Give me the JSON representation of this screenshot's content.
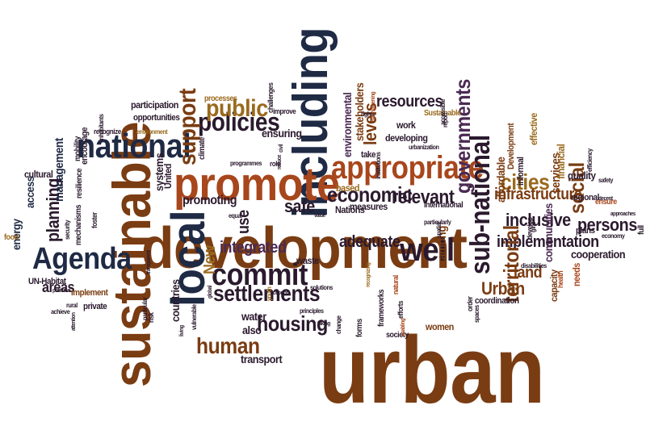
{
  "palette": {
    "dark": "#2b1a2e",
    "navy": "#1f2a44",
    "purple": "#4b2a52",
    "brown": "#7a3c12",
    "rust": "#a8461c",
    "gold": "#9a6a1e",
    "tan": "#b07f2c"
  },
  "words": [
    {
      "t": "urban",
      "c": "brown"
    },
    {
      "t": "development",
      "c": "brown"
    },
    {
      "t": "sustainable",
      "c": "brown"
    },
    {
      "t": "including",
      "c": "navy"
    },
    {
      "t": "local",
      "c": "navy"
    },
    {
      "t": "promote",
      "c": "rust"
    },
    {
      "t": "national",
      "c": "navy"
    },
    {
      "t": "appropriate",
      "c": "rust"
    },
    {
      "t": "Agenda",
      "c": "navy"
    },
    {
      "t": "commit",
      "c": "dark"
    },
    {
      "t": "well",
      "c": "dark"
    },
    {
      "t": "sub-national",
      "c": "dark"
    },
    {
      "t": "policies",
      "c": "dark"
    },
    {
      "t": "public",
      "c": "gold"
    },
    {
      "t": "support",
      "c": "brown"
    },
    {
      "t": "governments",
      "c": "purple"
    },
    {
      "t": "cities",
      "c": "gold"
    },
    {
      "t": "economic",
      "c": "dark"
    },
    {
      "t": "settlements",
      "c": "dark"
    },
    {
      "t": "human",
      "c": "brown"
    },
    {
      "t": "housing",
      "c": "dark"
    },
    {
      "t": "planning",
      "c": "dark"
    },
    {
      "t": "relevant",
      "c": "dark"
    },
    {
      "t": "inclusive",
      "c": "dark"
    },
    {
      "t": "implementation",
      "c": "dark"
    },
    {
      "t": "infrastructure",
      "c": "brown"
    },
    {
      "t": "territorial",
      "c": "brown"
    },
    {
      "t": "Urban",
      "c": "brown"
    },
    {
      "t": "social",
      "c": "brown"
    },
    {
      "t": "persons",
      "c": "dark"
    },
    {
      "t": "resources",
      "c": "dark"
    },
    {
      "t": "levels",
      "c": "brown"
    },
    {
      "t": "integrated",
      "c": "purple"
    },
    {
      "t": "adequate",
      "c": "dark"
    },
    {
      "t": "safe",
      "c": "dark"
    },
    {
      "t": "use",
      "c": "dark"
    },
    {
      "t": "New",
      "c": "gold"
    },
    {
      "t": "land",
      "c": "brown"
    },
    {
      "t": "promoting",
      "c": "dark"
    },
    {
      "t": "management",
      "c": "navy"
    },
    {
      "t": "access",
      "c": "navy"
    },
    {
      "t": "energy",
      "c": "navy"
    },
    {
      "t": "areas",
      "c": "dark"
    },
    {
      "t": "transport",
      "c": "dark"
    },
    {
      "t": "also",
      "c": "dark"
    },
    {
      "t": "countries",
      "c": "dark"
    },
    {
      "t": "services",
      "c": "brown"
    },
    {
      "t": "affordable",
      "c": "brown"
    },
    {
      "t": "among",
      "c": "brown"
    },
    {
      "t": "communities",
      "c": "purple"
    },
    {
      "t": "financial",
      "c": "gold"
    },
    {
      "t": "cooperation",
      "c": "dark"
    },
    {
      "t": "quality",
      "c": "dark"
    },
    {
      "t": "stakeholders",
      "c": "brown"
    },
    {
      "t": "environmental",
      "c": "purple"
    },
    {
      "t": "ensuring",
      "c": "dark"
    },
    {
      "t": "systems",
      "c": "dark"
    },
    {
      "t": "United",
      "c": "dark"
    },
    {
      "t": "water",
      "c": "dark"
    },
    {
      "t": "women",
      "c": "brown"
    },
    {
      "t": "measures",
      "c": "dark"
    },
    {
      "t": "participation",
      "c": "dark"
    },
    {
      "t": "opportunities",
      "c": "dark"
    },
    {
      "t": "cultural",
      "c": "dark"
    },
    {
      "t": "UN-Habitat",
      "c": "dark"
    },
    {
      "t": "private",
      "c": "dark"
    },
    {
      "t": "implement",
      "c": "brown"
    },
    {
      "t": "encourage",
      "c": "dark"
    },
    {
      "t": "mobility",
      "c": "dark"
    },
    {
      "t": "resilience",
      "c": "dark"
    },
    {
      "t": "mechanisms",
      "c": "dark"
    },
    {
      "t": "waste",
      "c": "dark"
    },
    {
      "t": "based",
      "c": "gold"
    },
    {
      "t": "Nations",
      "c": "dark"
    },
    {
      "t": "forms",
      "c": "dark"
    },
    {
      "t": "work",
      "c": "dark"
    },
    {
      "t": "developing",
      "c": "dark"
    },
    {
      "t": "take",
      "c": "dark"
    },
    {
      "t": "informal",
      "c": "dark"
    },
    {
      "t": "regional",
      "c": "dark"
    },
    {
      "t": "plans",
      "c": "dark"
    },
    {
      "t": "ensure",
      "c": "rust"
    },
    {
      "t": "needs",
      "c": "rust"
    },
    {
      "t": "capacity",
      "c": "brown"
    },
    {
      "t": "coordination",
      "c": "dark"
    },
    {
      "t": "effective",
      "c": "gold"
    },
    {
      "t": "Development",
      "c": "brown"
    },
    {
      "t": "international",
      "c": "dark"
    },
    {
      "t": "food",
      "c": "gold"
    },
    {
      "t": "frameworks",
      "c": "dark"
    },
    {
      "t": "society",
      "c": "dark"
    },
    {
      "t": "processes",
      "c": "gold"
    },
    {
      "t": "challenges",
      "c": "dark"
    },
    {
      "t": "improve",
      "c": "dark"
    },
    {
      "t": "Sustainable",
      "c": "gold"
    },
    {
      "t": "recognize",
      "c": "dark"
    },
    {
      "t": "environment",
      "c": "gold"
    },
    {
      "t": "programmes",
      "c": "dark"
    },
    {
      "t": "climate",
      "c": "dark"
    },
    {
      "t": "role",
      "c": "dark"
    },
    {
      "t": "civil",
      "c": "dark"
    },
    {
      "t": "reduce",
      "c": "dark"
    },
    {
      "t": "security",
      "c": "dark"
    },
    {
      "t": "foster",
      "c": "dark"
    },
    {
      "t": "rural",
      "c": "dark"
    },
    {
      "t": "attention",
      "c": "dark"
    },
    {
      "t": "achieve",
      "c": "dark"
    },
    {
      "t": "potential",
      "c": "dark"
    },
    {
      "t": "particular",
      "c": "dark"
    },
    {
      "t": "risk",
      "c": "dark"
    },
    {
      "t": "vulnerable",
      "c": "dark"
    },
    {
      "t": "youth",
      "c": "gold"
    },
    {
      "t": "account",
      "c": "dark"
    },
    {
      "t": "principles",
      "c": "dark"
    },
    {
      "t": "taking",
      "c": "dark"
    },
    {
      "t": "change",
      "c": "dark"
    },
    {
      "t": "solutions",
      "c": "dark"
    },
    {
      "t": "spatial",
      "c": "dark"
    },
    {
      "t": "urbanization",
      "c": "dark"
    },
    {
      "t": "particularly",
      "c": "dark"
    },
    {
      "t": "value",
      "c": "dark"
    },
    {
      "t": "rights",
      "c": "dark"
    },
    {
      "t": "report",
      "c": "dark"
    },
    {
      "t": "order",
      "c": "dark"
    },
    {
      "t": "efforts",
      "c": "dark"
    },
    {
      "t": "enabling",
      "c": "rust"
    },
    {
      "t": "natural",
      "c": "rust"
    },
    {
      "t": "recognizing",
      "c": "gold"
    },
    {
      "t": "develop",
      "c": "dark"
    },
    {
      "t": "disabilities",
      "c": "dark"
    },
    {
      "t": "health",
      "c": "rust"
    },
    {
      "t": "girls",
      "c": "dark"
    },
    {
      "t": "spaces",
      "c": "dark"
    },
    {
      "t": "accessible",
      "c": "dark"
    },
    {
      "t": "inhabitants",
      "c": "dark"
    },
    {
      "t": "strengthening",
      "c": "rust"
    },
    {
      "t": "equal",
      "c": "dark"
    },
    {
      "t": "transparent",
      "c": "dark"
    },
    {
      "t": "global",
      "c": "dark"
    },
    {
      "t": "safety",
      "c": "dark"
    },
    {
      "t": "decent",
      "c": "dark"
    },
    {
      "t": "approaches",
      "c": "dark"
    },
    {
      "t": "economy",
      "c": "dark"
    },
    {
      "t": "full",
      "c": "dark"
    },
    {
      "t": "efficiency",
      "c": "dark"
    },
    {
      "t": "institutions",
      "c": "dark"
    },
    {
      "t": "living",
      "c": "dark"
    }
  ]
}
